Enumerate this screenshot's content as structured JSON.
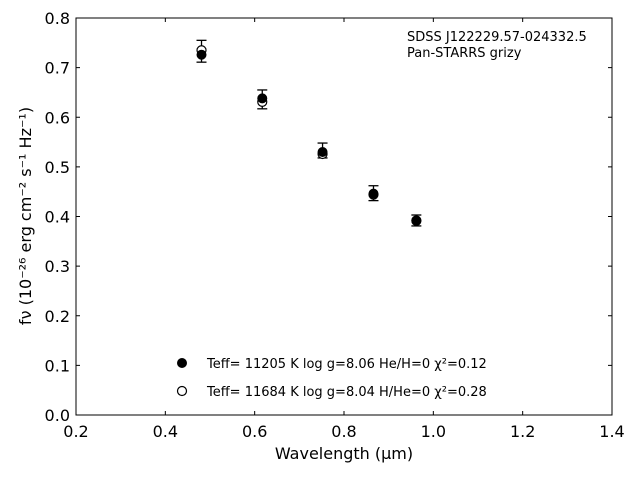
{
  "chart_data": {
    "type": "scatter",
    "title": "",
    "xlabel": "Wavelength (μm)",
    "ylabel": "fν (10⁻²⁶ erg cm⁻² s⁻¹ Hz⁻¹)",
    "xlim": [
      0.2,
      1.4
    ],
    "ylim": [
      0.0,
      0.8
    ],
    "x_ticks": [
      0.2,
      0.4,
      0.6,
      0.8,
      1.0,
      1.2,
      1.4
    ],
    "y_ticks": [
      0.0,
      0.1,
      0.2,
      0.3,
      0.4,
      0.5,
      0.6,
      0.7,
      0.8
    ],
    "x_tick_labels": [
      "0.2",
      "0.4",
      "0.6",
      "0.8",
      "1.0",
      "1.2",
      "1.4"
    ],
    "y_tick_labels": [
      "0.0",
      "0.1",
      "0.2",
      "0.3",
      "0.4",
      "0.5",
      "0.6",
      "0.7",
      "0.8"
    ],
    "grid": false,
    "legend_position": "bottom-center",
    "annotation": [
      "SDSS J122229.57-024332.5",
      "Pan-STARRS grizy"
    ],
    "observed": {
      "x": [
        0.481,
        0.617,
        0.752,
        0.866,
        0.962
      ],
      "y": [
        0.733,
        0.636,
        0.533,
        0.447,
        0.392
      ],
      "yerr": [
        0.022,
        0.019,
        0.015,
        0.015,
        0.011
      ]
    },
    "series": [
      {
        "name": "Teff= 11205 K  log g=8.06  He/H=0  χ²=0.12",
        "marker": "filled-circle",
        "x": [
          0.481,
          0.617,
          0.752,
          0.866,
          0.962
        ],
        "y": [
          0.726,
          0.638,
          0.53,
          0.446,
          0.391
        ]
      },
      {
        "name": "Teff= 11684 K  log g=8.04  H/He=0  χ²=0.28",
        "marker": "open-circle",
        "x": [
          0.481,
          0.617,
          0.752,
          0.866,
          0.962
        ],
        "y": [
          0.735,
          0.631,
          0.526,
          0.444,
          0.392
        ]
      }
    ],
    "colors": {
      "marker": "#000000",
      "axis": "#000000"
    }
  }
}
